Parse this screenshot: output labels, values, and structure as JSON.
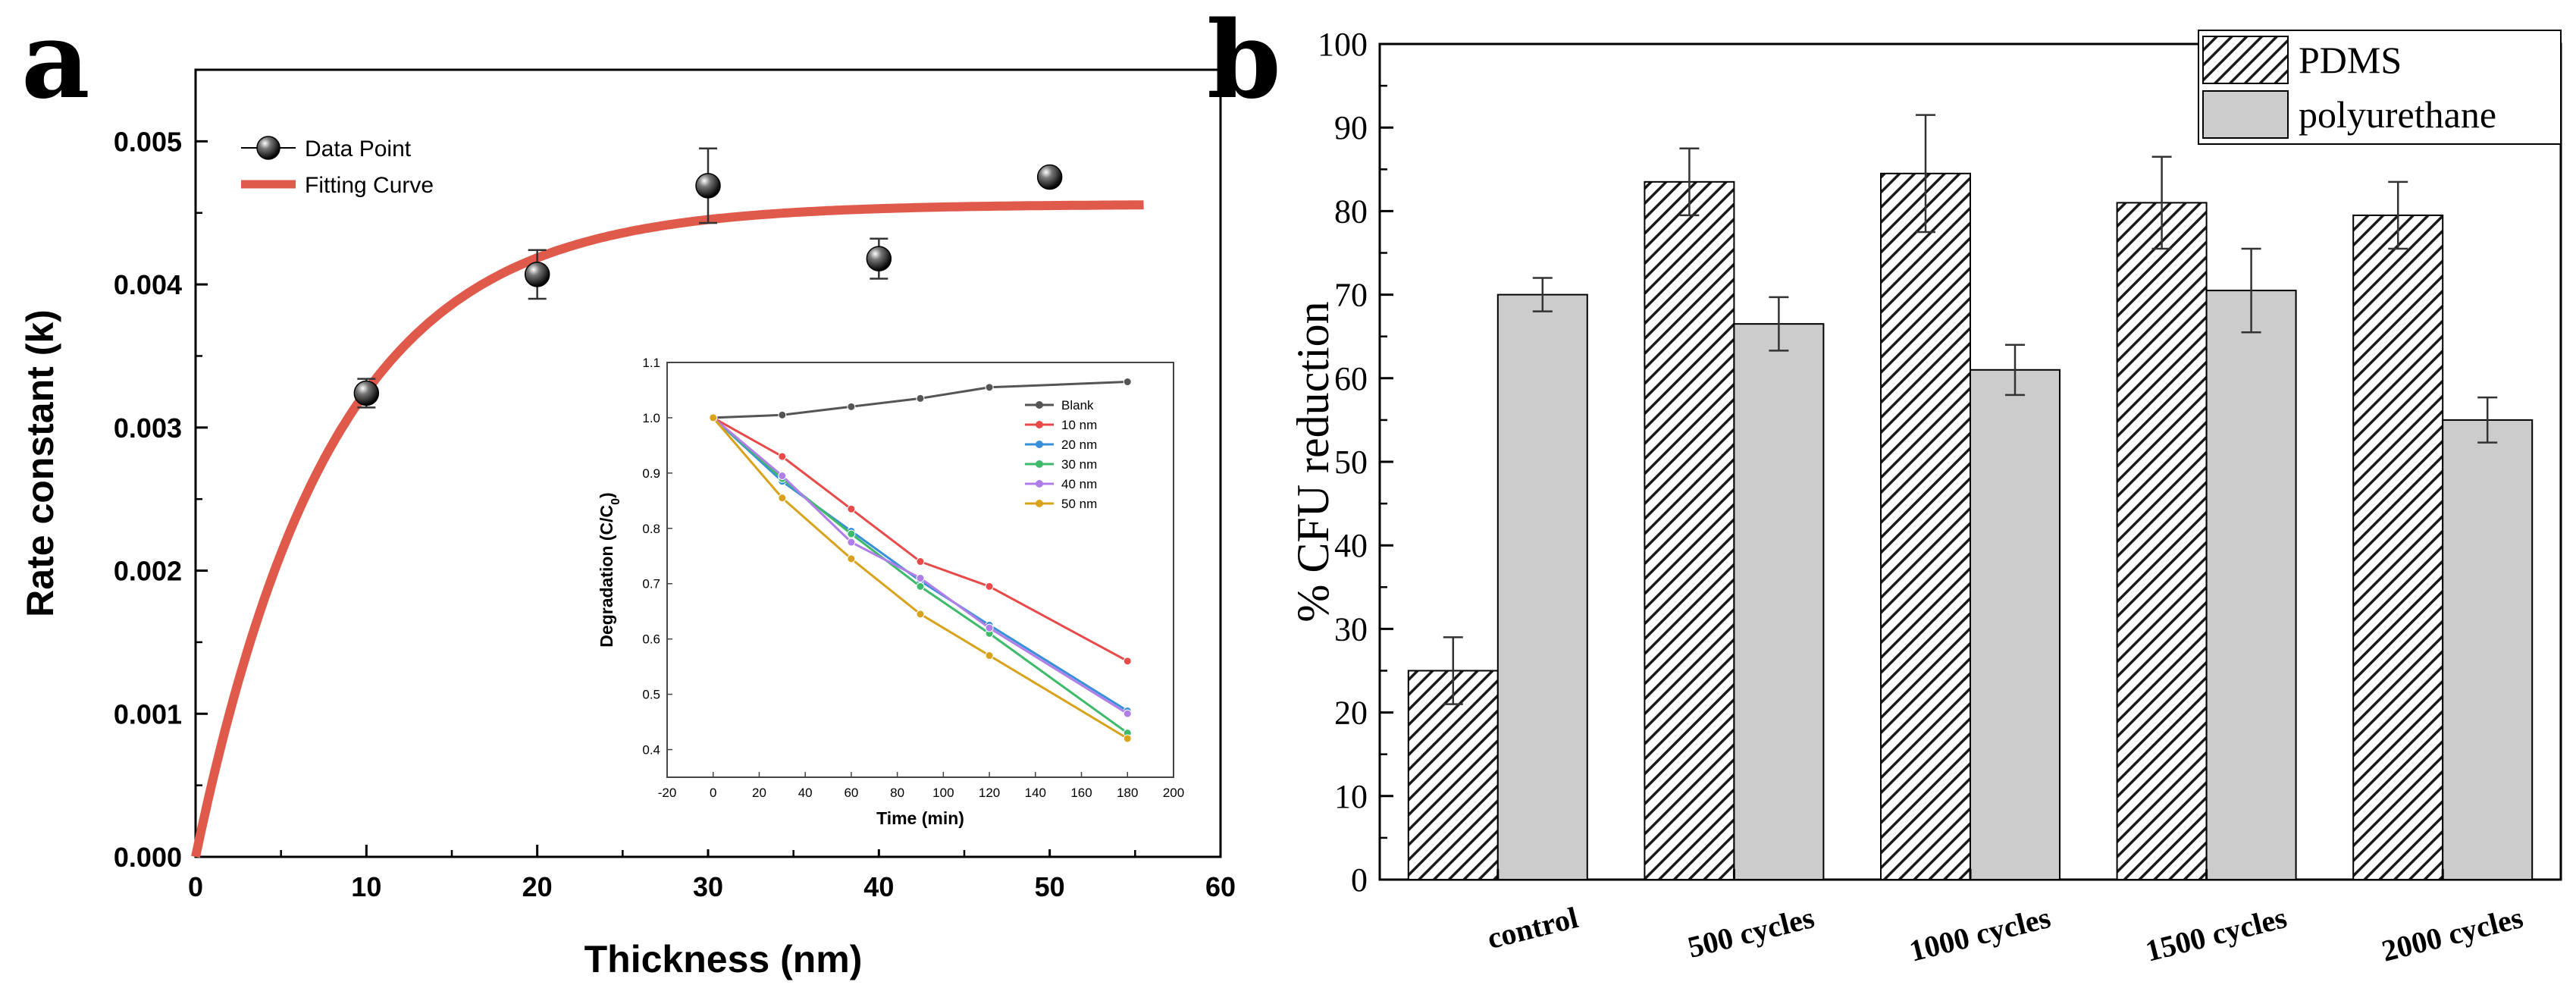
{
  "chart_data": [
    {
      "type": "scatter",
      "panel": "a",
      "xlabel": "Thickness (nm)",
      "ylabel": "Rate constant (k)",
      "xlim": [
        0,
        60
      ],
      "ylim": [
        0,
        0.0055
      ],
      "xticks": [
        0,
        10,
        20,
        30,
        40,
        50,
        60
      ],
      "yticks": [
        0,
        0.001,
        0.002,
        0.003,
        0.004,
        0.005
      ],
      "xtick_labels": [
        "0",
        "10",
        "20",
        "30",
        "40",
        "50",
        "60"
      ],
      "ytick_labels": [
        "0.000",
        "0.001",
        "0.002",
        "0.003",
        "0.004",
        "0.005"
      ],
      "legend": {
        "placement": "top-left",
        "entries": [
          "Data Point",
          "Fitting Curve"
        ]
      },
      "data_points": {
        "x": [
          10,
          20,
          30,
          40,
          50
        ],
        "y": [
          0.00324,
          0.00407,
          0.00469,
          0.00418,
          0.00475
        ],
        "err": [
          0.0001,
          0.00017,
          0.00026,
          0.00014,
          3e-05
        ]
      },
      "fitting_curve": {
        "model": "k = A*(1 - exp(-t/tau))",
        "A": 0.00456,
        "tau": 8.0,
        "x_range": [
          0,
          55.5
        ]
      },
      "colors": {
        "points": "#111111",
        "fit": "#e05a4c"
      }
    },
    {
      "type": "line",
      "panel": "a-inset",
      "xlabel": "Time (min)",
      "ylabel": "Degradation (C/C",
      "ylabel_sub": "0",
      "ylabel_end": ")",
      "xlim": [
        -20,
        200
      ],
      "ylim": [
        0.35,
        1.1
      ],
      "xticks": [
        -20,
        0,
        20,
        40,
        60,
        80,
        100,
        120,
        140,
        160,
        180,
        200
      ],
      "yticks": [
        0.4,
        0.5,
        0.6,
        0.7,
        0.8,
        0.9,
        1.0,
        1.1
      ],
      "xtick_labels": [
        "-20",
        "0",
        "20",
        "40",
        "60",
        "80",
        "100",
        "120",
        "140",
        "160",
        "180",
        "200"
      ],
      "ytick_labels": [
        "0.4",
        "0.5",
        "0.6",
        "0.7",
        "0.8",
        "0.9",
        "1.0",
        "1.1"
      ],
      "x": [
        0,
        30,
        60,
        90,
        120,
        180
      ],
      "series": [
        {
          "name": "Blank",
          "values": [
            1.0,
            1.005,
            1.02,
            1.035,
            1.055,
            1.065
          ],
          "color": "#555555"
        },
        {
          "name": "10 nm",
          "values": [
            1.0,
            0.93,
            0.835,
            0.74,
            0.695,
            0.56
          ],
          "color": "#e84a4a"
        },
        {
          "name": "20 nm",
          "values": [
            1.0,
            0.885,
            0.795,
            0.705,
            0.625,
            0.47
          ],
          "color": "#3a8fd9"
        },
        {
          "name": "30 nm",
          "values": [
            1.0,
            0.89,
            0.79,
            0.695,
            0.61,
            0.43
          ],
          "color": "#3dbb6a"
        },
        {
          "name": "40 nm",
          "values": [
            1.0,
            0.895,
            0.775,
            0.71,
            0.62,
            0.465
          ],
          "color": "#b07ee8"
        },
        {
          "name": "50 nm",
          "values": [
            1.0,
            0.855,
            0.745,
            0.645,
            0.57,
            0.42
          ],
          "color": "#d9a21b"
        }
      ]
    },
    {
      "type": "bar",
      "panel": "b",
      "ylabel": "% CFU reduction",
      "xlabel": "",
      "ylim": [
        0,
        100
      ],
      "yticks": [
        0,
        10,
        20,
        30,
        40,
        50,
        60,
        70,
        80,
        90,
        100
      ],
      "ytick_labels": [
        "0",
        "10",
        "20",
        "30",
        "40",
        "50",
        "60",
        "70",
        "80",
        "90",
        "100"
      ],
      "categories": [
        "control",
        "500 cycles",
        "1000 cycles",
        "1500 cycles",
        "2000 cycles"
      ],
      "legend": {
        "placement": "top-right"
      },
      "series": [
        {
          "name": "PDMS",
          "values": [
            25,
            83.5,
            84.5,
            81,
            79.5
          ],
          "err": [
            4,
            4,
            7,
            5.5,
            4
          ],
          "fill": "hatched"
        },
        {
          "name": "polyurethane",
          "values": [
            70,
            66.5,
            61,
            70.5,
            55
          ],
          "err": [
            2,
            3.2,
            3,
            5,
            2.7
          ],
          "fill": "#cccccc"
        }
      ]
    }
  ],
  "labels": {
    "panel_a": "a",
    "panel_b": "b"
  }
}
